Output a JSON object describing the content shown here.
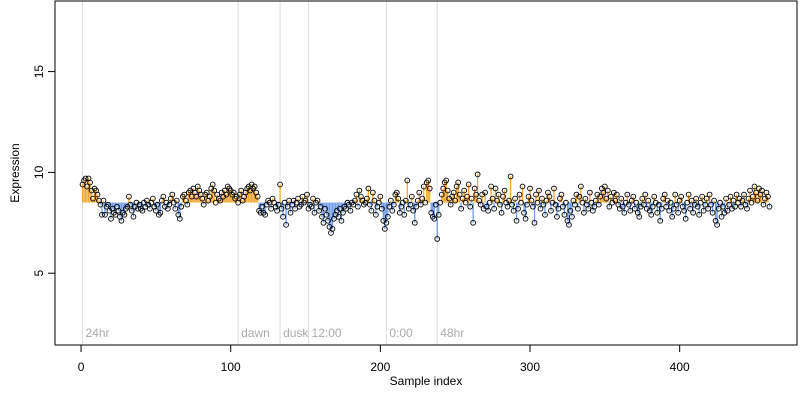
{
  "chart_data": {
    "type": "scatter",
    "xlabel": "Sample index",
    "ylabel": "Expression",
    "xlim": [
      -17.4,
      478.4
    ],
    "ylim": [
      1.44,
      18.5
    ],
    "xticks": [
      0,
      100,
      200,
      300,
      400
    ],
    "yticks": [
      5,
      10,
      15
    ],
    "point_color": "#000000",
    "above_color": "#f0a830",
    "below_color": "#6f9be8",
    "marker_color": "#dddddd",
    "markers": [
      {
        "x": 1,
        "label": "24hr"
      },
      {
        "x": 105,
        "label": "dawn"
      },
      {
        "x": 133,
        "label": "dusk"
      },
      {
        "x": 152,
        "label": "12:00"
      },
      {
        "x": 204,
        "label": "0:00"
      },
      {
        "x": 238,
        "label": "48hr"
      }
    ],
    "x": [
      1,
      2,
      3,
      4,
      5,
      6,
      7,
      8,
      9,
      10,
      11,
      12,
      13,
      14,
      15,
      16,
      17,
      18,
      19,
      20,
      21,
      22,
      23,
      24,
      25,
      26,
      27,
      28,
      29,
      30,
      31,
      32,
      33,
      34,
      35,
      36,
      37,
      38,
      39,
      40,
      41,
      42,
      43,
      44,
      45,
      46,
      47,
      48,
      49,
      50,
      51,
      52,
      53,
      54,
      55,
      56,
      57,
      58,
      59,
      60,
      61,
      62,
      63,
      64,
      65,
      66,
      67,
      68,
      69,
      70,
      71,
      72,
      73,
      74,
      75,
      76,
      77,
      78,
      79,
      80,
      81,
      82,
      83,
      84,
      85,
      86,
      87,
      88,
      89,
      90,
      91,
      92,
      93,
      94,
      95,
      96,
      97,
      98,
      99,
      100,
      101,
      102,
      103,
      104,
      105,
      106,
      107,
      108,
      109,
      110,
      111,
      112,
      113,
      114,
      115,
      116,
      117,
      118,
      119,
      120,
      121,
      122,
      123,
      124,
      125,
      126,
      127,
      128,
      129,
      130,
      131,
      132,
      133,
      134,
      135,
      136,
      137,
      138,
      139,
      140,
      141,
      142,
      143,
      144,
      145,
      146,
      147,
      148,
      149,
      150,
      151,
      152,
      153,
      154,
      155,
      156,
      157,
      158,
      159,
      160,
      161,
      162,
      163,
      164,
      165,
      166,
      167,
      168,
      169,
      170,
      171,
      172,
      173,
      174,
      175,
      176,
      177,
      178,
      179,
      180,
      181,
      182,
      183,
      184,
      185,
      186,
      187,
      188,
      189,
      190,
      191,
      192,
      193,
      194,
      195,
      196,
      197,
      198,
      199,
      200,
      201,
      202,
      203,
      204,
      205,
      206,
      207,
      208,
      209,
      210,
      211,
      212,
      213,
      214,
      215,
      216,
      217,
      218,
      219,
      220,
      221,
      222,
      223,
      224,
      225,
      226,
      227,
      228,
      229,
      230,
      231,
      232,
      233,
      234,
      235,
      236,
      237,
      238,
      239,
      240,
      241,
      242,
      243,
      244,
      245,
      246,
      247,
      248,
      249,
      250,
      251,
      252,
      253,
      254,
      255,
      256,
      257,
      258,
      259,
      260,
      261,
      262,
      263,
      264,
      265,
      266,
      267,
      268,
      269,
      270,
      271,
      272,
      273,
      274,
      275,
      276,
      277,
      278,
      279,
      280,
      281,
      282,
      283,
      284,
      285,
      286,
      287,
      288,
      289,
      290,
      291,
      292,
      293,
      294,
      295,
      296,
      297,
      298,
      299,
      300,
      301,
      302,
      303,
      304,
      305,
      306,
      307,
      308,
      309,
      310,
      311,
      312,
      313,
      314,
      315,
      316,
      317,
      318,
      319,
      320,
      321,
      322,
      323,
      324,
      325,
      326,
      327,
      328,
      329,
      330,
      331,
      332,
      333,
      334,
      335,
      336,
      337,
      338,
      339,
      340,
      341,
      342,
      343,
      344,
      345,
      346,
      347,
      348,
      349,
      350,
      351,
      352,
      353,
      354,
      355,
      356,
      357,
      358,
      359,
      360,
      361,
      362,
      363,
      364,
      365,
      366,
      367,
      368,
      369,
      370,
      371,
      372,
      373,
      374,
      375,
      376,
      377,
      378,
      379,
      380,
      381,
      382,
      383,
      384,
      385,
      386,
      387,
      388,
      389,
      390,
      391,
      392,
      393,
      394,
      395,
      396,
      397,
      398,
      399,
      400,
      401,
      402,
      403,
      404,
      405,
      406,
      407,
      408,
      409,
      410,
      411,
      412,
      413,
      414,
      415,
      416,
      417,
      418,
      419,
      420,
      421,
      422,
      423,
      424,
      425,
      426,
      427,
      428,
      429,
      430,
      431,
      432,
      433,
      434,
      435,
      436,
      437,
      438,
      439,
      440,
      441,
      442,
      443,
      444,
      445,
      446,
      447,
      448,
      449,
      450,
      451,
      452,
      453,
      454,
      455,
      456,
      457,
      458,
      459,
      460
    ],
    "values": [
      9.4,
      9.6,
      9.7,
      9.3,
      9.7,
      9.5,
      9.1,
      8.7,
      9.2,
      9.1,
      8.9,
      8.6,
      8.4,
      7.9,
      8.6,
      7.9,
      8.3,
      8.4,
      8.1,
      7.7,
      8.2,
      8.0,
      7.9,
      8.3,
      8.1,
      7.8,
      7.6,
      8.0,
      7.9,
      8.2,
      8.3,
      8.8,
      8.4,
      8.1,
      7.8,
      8.3,
      8.5,
      8.2,
      8.4,
      8.2,
      8.1,
      8.5,
      8.3,
      8.6,
      8.4,
      8.2,
      8.5,
      8.7,
      8.3,
      8.1,
      8.4,
      7.9,
      8.0,
      8.6,
      8.8,
      8.3,
      8.5,
      8.2,
      8.4,
      8.7,
      8.9,
      8.5,
      8.2,
      8.6,
      7.9,
      7.7,
      8.3,
      8.8,
      8.9,
      8.6,
      8.4,
      9.0,
      9.1,
      8.8,
      9.2,
      9.0,
      8.8,
      9.3,
      9.1,
      8.9,
      8.7,
      8.4,
      8.9,
      9.0,
      8.6,
      8.8,
      9.2,
      9.4,
      9.1,
      8.5,
      8.9,
      8.7,
      8.6,
      9.0,
      8.8,
      9.1,
      8.9,
      9.3,
      9.2,
      9.1,
      8.9,
      9.0,
      8.7,
      8.8,
      8.5,
      8.9,
      9.1,
      8.6,
      8.8,
      9.0,
      9.2,
      9.3,
      9.1,
      9.4,
      9.2,
      9.3,
      9.0,
      8.8,
      8.1,
      8.0,
      8.3,
      8.0,
      7.9,
      8.4,
      8.6,
      8.5,
      8.2,
      8.7,
      8.5,
      8.3,
      8.1,
      8.4,
      9.4,
      8.2,
      7.8,
      8.5,
      7.4,
      8.3,
      8.6,
      8.0,
      8.4,
      8.6,
      8.2,
      8.5,
      8.7,
      8.3,
      8.4,
      8.8,
      8.5,
      8.6,
      8.9,
      8.2,
      8.4,
      8.3,
      8.7,
      8.0,
      8.5,
      8.6,
      8.1,
      8.3,
      7.8,
      7.5,
      8.2,
      7.9,
      7.6,
      7.3,
      7.0,
      7.2,
      7.7,
      7.9,
      8.1,
      7.8,
      8.2,
      7.6,
      8.0,
      8.3,
      8.2,
      8.5,
      8.4,
      8.1,
      8.5,
      8.4,
      8.6,
      8.9,
      8.3,
      9.1,
      8.8,
      8.6,
      8.4,
      8.5,
      8.7,
      9.2,
      8.4,
      8.1,
      9.0,
      8.6,
      7.9,
      8.3,
      8.5,
      8.8,
      8.2,
      7.6,
      7.2,
      7.5,
      7.8,
      8.3,
      8.6,
      8.1,
      8.4,
      8.9,
      9.0,
      8.7,
      8.0,
      8.3,
      8.5,
      7.9,
      8.6,
      9.6,
      8.2,
      8.4,
      8.8,
      8.1,
      7.5,
      8.3,
      8.6,
      9.0,
      8.4,
      8.7,
      9.3,
      8.5,
      9.5,
      9.6,
      9.2,
      8.0,
      7.8,
      7.7,
      8.4,
      6.7,
      7.9,
      8.5,
      8.9,
      9.2,
      9.5,
      9.6,
      9.1,
      8.7,
      8.4,
      8.8,
      9.0,
      8.6,
      9.3,
      9.5,
      8.9,
      8.2,
      8.7,
      9.1,
      8.5,
      8.8,
      9.4,
      8.3,
      8.7,
      7.5,
      9.2,
      8.9,
      9.9,
      8.6,
      8.4,
      8.9,
      8.2,
      9.0,
      8.3,
      8.1,
      8.5,
      9.3,
      8.7,
      8.2,
      9.2,
      8.6,
      8.9,
      8.4,
      8.0,
      8.8,
      9.1,
      8.5,
      8.3,
      8.6,
      9.8,
      8.4,
      8.1,
      8.7,
      7.6,
      8.2,
      8.9,
      8.5,
      9.3,
      8.0,
      7.7,
      8.4,
      8.8,
      9.2,
      8.6,
      8.3,
      7.5,
      8.9,
      8.5,
      9.1,
      8.2,
      8.7,
      8.4,
      7.9,
      8.6,
      9.0,
      8.8,
      8.1,
      8.5,
      9.2,
      8.4,
      7.8,
      8.2,
      8.7,
      8.9,
      8.3,
      7.9,
      8.5,
      7.6,
      7.4,
      8.1,
      7.8,
      8.6,
      8.4,
      8.9,
      8.2,
      8.8,
      9.3,
      8.5,
      8.0,
      8.7,
      8.4,
      8.2,
      9.0,
      8.5,
      8.1,
      8.3,
      8.6,
      8.9,
      8.4,
      8.8,
      9.2,
      9.0,
      9.3,
      8.7,
      9.1,
      8.3,
      8.8,
      8.5,
      9.0,
      8.6,
      8.9,
      8.4,
      8.2,
      8.7,
      8.3,
      8.0,
      8.5,
      8.9,
      8.4,
      8.1,
      8.6,
      8.8,
      8.2,
      8.5,
      8.0,
      7.8,
      8.3,
      8.7,
      8.4,
      8.9,
      8.2,
      8.6,
      8.1,
      7.9,
      8.3,
      8.8,
      8.5,
      8.0,
      8.4,
      7.6,
      8.2,
      8.7,
      8.9,
      8.3,
      8.6,
      8.1,
      8.5,
      7.8,
      8.2,
      8.9,
      8.4,
      8.0,
      8.6,
      8.8,
      8.3,
      8.1,
      7.7,
      8.5,
      8.9,
      8.2,
      8.6,
      8.0,
      8.4,
      8.7,
      8.3,
      7.9,
      8.5,
      8.8,
      8.1,
      8.4,
      8.7,
      8.2,
      8.9,
      8.4,
      8.0,
      8.6,
      7.6,
      7.4,
      8.2,
      8.5,
      7.8,
      8.3,
      8.0,
      8.7,
      8.1,
      8.4,
      8.8,
      8.2,
      8.6,
      8.3,
      8.9,
      8.5,
      8.7,
      8.3,
      8.6,
      8.9,
      8.4,
      8.2,
      8.7,
      9.1,
      8.5,
      8.8,
      9.3,
      9.0,
      8.6,
      9.2,
      8.9,
      9.1,
      8.4,
      8.7,
      9.0,
      8.8,
      8.3
    ]
  }
}
